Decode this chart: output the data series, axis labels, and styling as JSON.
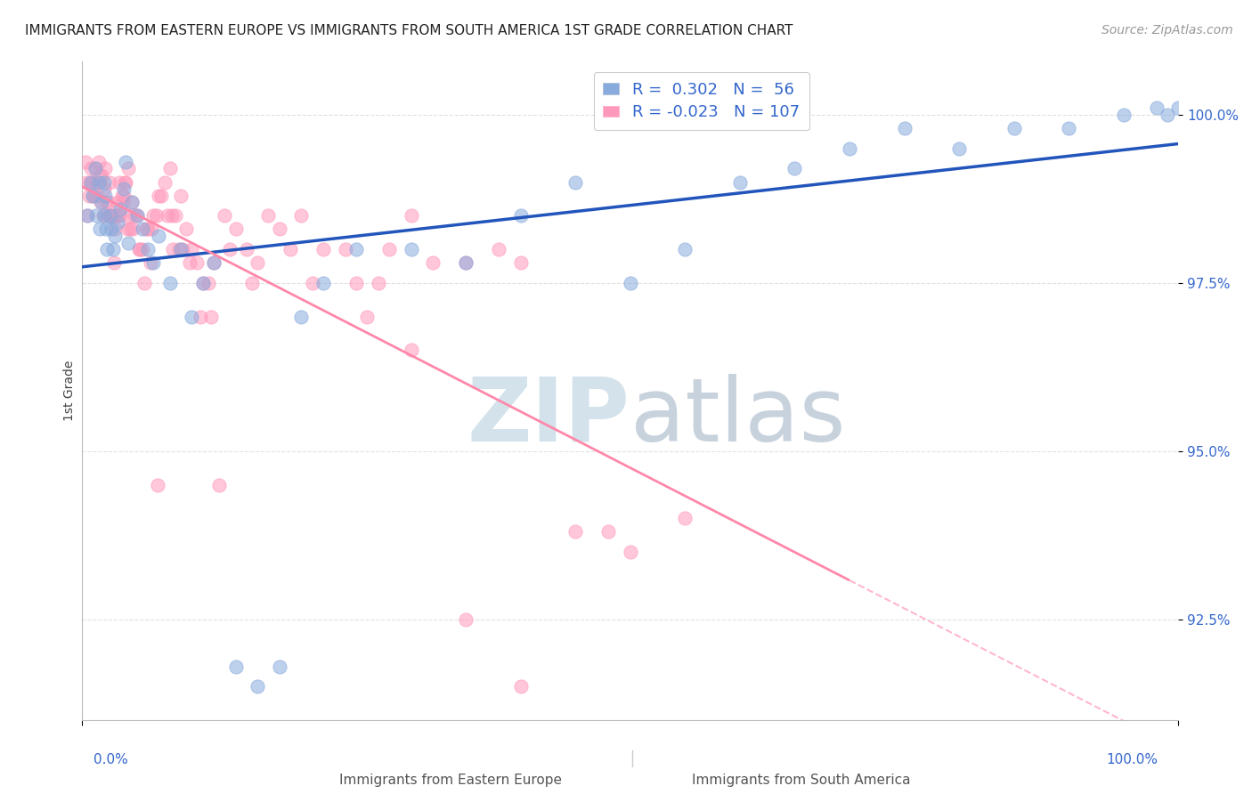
{
  "title": "IMMIGRANTS FROM EASTERN EUROPE VS IMMIGRANTS FROM SOUTH AMERICA 1ST GRADE CORRELATION CHART",
  "source_text": "Source: ZipAtlas.com",
  "ylabel": "1st Grade",
  "x_label_bottom_left": "Immigrants from Eastern Europe",
  "x_label_bottom_right": "Immigrants from South America",
  "xlim": [
    0.0,
    100.0
  ],
  "ylim": [
    91.0,
    100.8
  ],
  "blue_R": 0.302,
  "blue_N": 56,
  "pink_R": -0.023,
  "pink_N": 107,
  "blue_color": "#88AADD",
  "pink_color": "#FF99BB",
  "blue_line_color": "#2255BB",
  "pink_line_color": "#FF88AA",
  "title_color": "#222222",
  "axis_color": "#3366CC",
  "watermark_zip": "ZIP",
  "watermark_atlas": "atlas",
  "watermark_color_zip": "#CCDDEE",
  "watermark_color_atlas": "#AABBCC",
  "grid_color": "#DDDDDD",
  "dot_size": 120,
  "dot_alpha": 0.55,
  "blue_scatter_x": [
    0.5,
    0.8,
    1.0,
    1.2,
    1.3,
    1.5,
    1.6,
    1.8,
    2.0,
    2.0,
    2.1,
    2.2,
    2.3,
    2.5,
    2.7,
    2.8,
    3.0,
    3.2,
    3.5,
    3.8,
    4.0,
    4.2,
    4.5,
    5.0,
    5.5,
    6.0,
    6.5,
    7.0,
    8.0,
    9.0,
    10.0,
    11.0,
    12.0,
    14.0,
    16.0,
    18.0,
    20.0,
    22.0,
    25.0,
    30.0,
    35.0,
    40.0,
    45.0,
    50.0,
    55.0,
    60.0,
    65.0,
    70.0,
    75.0,
    80.0,
    85.0,
    90.0,
    95.0,
    98.0,
    99.0,
    100.0
  ],
  "blue_scatter_y": [
    98.5,
    99.0,
    98.8,
    99.2,
    98.5,
    99.0,
    98.3,
    98.7,
    99.0,
    98.5,
    98.8,
    98.3,
    98.0,
    98.5,
    98.3,
    98.0,
    98.2,
    98.4,
    98.6,
    98.9,
    99.3,
    98.1,
    98.7,
    98.5,
    98.3,
    98.0,
    97.8,
    98.2,
    97.5,
    98.0,
    97.0,
    97.5,
    97.8,
    91.8,
    91.5,
    91.8,
    97.0,
    97.5,
    98.0,
    98.0,
    97.8,
    98.5,
    99.0,
    97.5,
    98.0,
    99.0,
    99.2,
    99.5,
    99.8,
    99.5,
    99.8,
    99.8,
    100.0,
    100.1,
    100.0,
    100.1
  ],
  "pink_scatter_x": [
    0.3,
    0.4,
    0.5,
    0.6,
    0.7,
    0.8,
    0.9,
    1.0,
    1.1,
    1.2,
    1.3,
    1.4,
    1.5,
    1.6,
    1.7,
    1.8,
    1.9,
    2.0,
    2.1,
    2.2,
    2.3,
    2.4,
    2.5,
    2.6,
    2.7,
    2.8,
    2.9,
    3.0,
    3.1,
    3.2,
    3.3,
    3.4,
    3.5,
    3.6,
    3.7,
    3.8,
    3.9,
    4.0,
    4.1,
    4.2,
    4.3,
    4.4,
    4.5,
    4.6,
    4.8,
    5.0,
    5.2,
    5.3,
    5.5,
    5.7,
    5.8,
    6.0,
    6.2,
    6.3,
    6.5,
    6.8,
    6.9,
    7.0,
    7.2,
    7.5,
    7.8,
    8.0,
    8.2,
    8.3,
    8.5,
    8.8,
    9.0,
    9.2,
    9.5,
    9.8,
    10.0,
    10.5,
    10.8,
    11.0,
    11.5,
    11.8,
    12.0,
    12.5,
    13.0,
    13.5,
    14.0,
    15.0,
    15.5,
    16.0,
    17.0,
    18.0,
    19.0,
    20.0,
    21.0,
    22.0,
    24.0,
    25.0,
    26.0,
    27.0,
    28.0,
    30.0,
    32.0,
    35.0,
    38.0,
    40.0,
    45.0,
    48.0,
    50.0,
    55.0,
    30.0,
    35.0,
    40.0
  ],
  "pink_scatter_y": [
    99.3,
    99.0,
    98.5,
    98.8,
    99.0,
    99.2,
    99.0,
    98.8,
    98.8,
    99.2,
    99.0,
    98.8,
    99.3,
    99.1,
    98.7,
    99.1,
    98.5,
    98.9,
    99.2,
    98.7,
    98.5,
    98.7,
    99.0,
    98.5,
    98.5,
    98.5,
    97.8,
    98.3,
    98.5,
    98.7,
    98.5,
    99.0,
    98.5,
    98.8,
    98.7,
    98.8,
    99.0,
    99.0,
    98.3,
    99.2,
    98.5,
    98.3,
    98.7,
    98.3,
    98.5,
    98.5,
    98.0,
    98.0,
    98.0,
    97.5,
    98.3,
    98.3,
    97.8,
    98.3,
    98.5,
    98.5,
    94.5,
    98.8,
    98.8,
    99.0,
    98.5,
    99.2,
    98.5,
    98.0,
    98.5,
    98.0,
    98.8,
    98.0,
    98.3,
    97.8,
    98.0,
    97.8,
    97.0,
    97.5,
    97.5,
    97.0,
    97.8,
    94.5,
    98.5,
    98.0,
    98.3,
    98.0,
    97.5,
    97.8,
    98.5,
    98.3,
    98.0,
    98.5,
    97.5,
    98.0,
    98.0,
    97.5,
    97.0,
    97.5,
    98.0,
    98.5,
    97.8,
    97.8,
    98.0,
    97.8,
    93.8,
    93.8,
    93.5,
    94.0,
    96.5,
    92.5,
    91.5
  ]
}
